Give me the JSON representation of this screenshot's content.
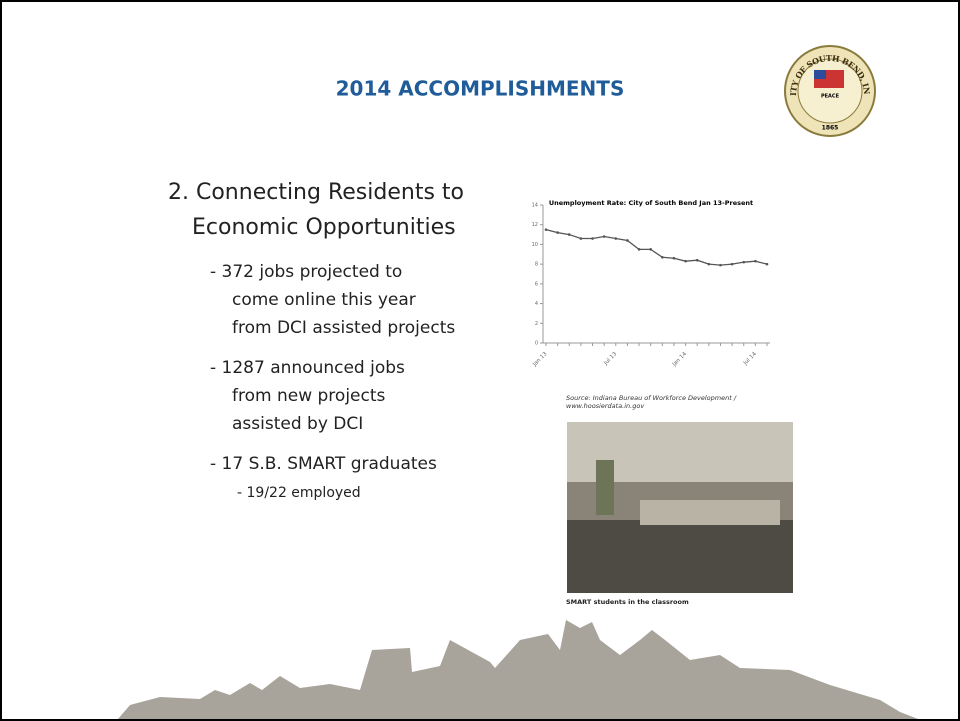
{
  "header": {
    "title": "2014 ACCOMPLISHMENTS"
  },
  "seal": {
    "ring_text": "THE CITY OF SOUTH BEND, INDIANA",
    "motto": "PEACE",
    "year": "1865"
  },
  "bullets": {
    "heading": [
      "2. Connecting Residents to",
      "Economic Opportunities"
    ],
    "items": [
      {
        "lines": [
          "- 372 jobs projected to",
          "come online this year",
          "from DCI assisted projects"
        ]
      },
      {
        "lines": [
          "- 1287 announced jobs",
          "from new projects",
          "assisted by DCI"
        ]
      },
      {
        "lines": [
          "- 17 S.B. SMART graduates"
        ],
        "sub": [
          "- 19/22 employed"
        ]
      }
    ]
  },
  "chart_data": {
    "type": "line",
    "title": "Unemployment Rate: City of South Bend Jan 13-Present",
    "categories": [
      "Jan 13",
      null,
      null,
      null,
      null,
      null,
      "Jul 13",
      null,
      null,
      null,
      null,
      null,
      "Jan 14",
      null,
      null,
      null,
      null,
      null,
      "Jul 14",
      null
    ],
    "values": [
      11.5,
      11.2,
      11.0,
      10.6,
      10.6,
      10.8,
      10.6,
      10.4,
      9.5,
      9.5,
      8.7,
      8.6,
      8.3,
      8.4,
      8.0,
      7.9,
      8.0,
      8.2,
      8.3,
      8.0
    ],
    "color": "#555555",
    "ylim": [
      0,
      14
    ],
    "yticks": [
      0,
      2,
      4,
      6,
      8,
      10,
      12,
      14
    ]
  },
  "source": [
    "Source: Indiana Bureau of Workforce Development /",
    "www.hoosierdata.in.gov"
  ],
  "photo": {
    "caption": "SMART students in the classroom"
  }
}
